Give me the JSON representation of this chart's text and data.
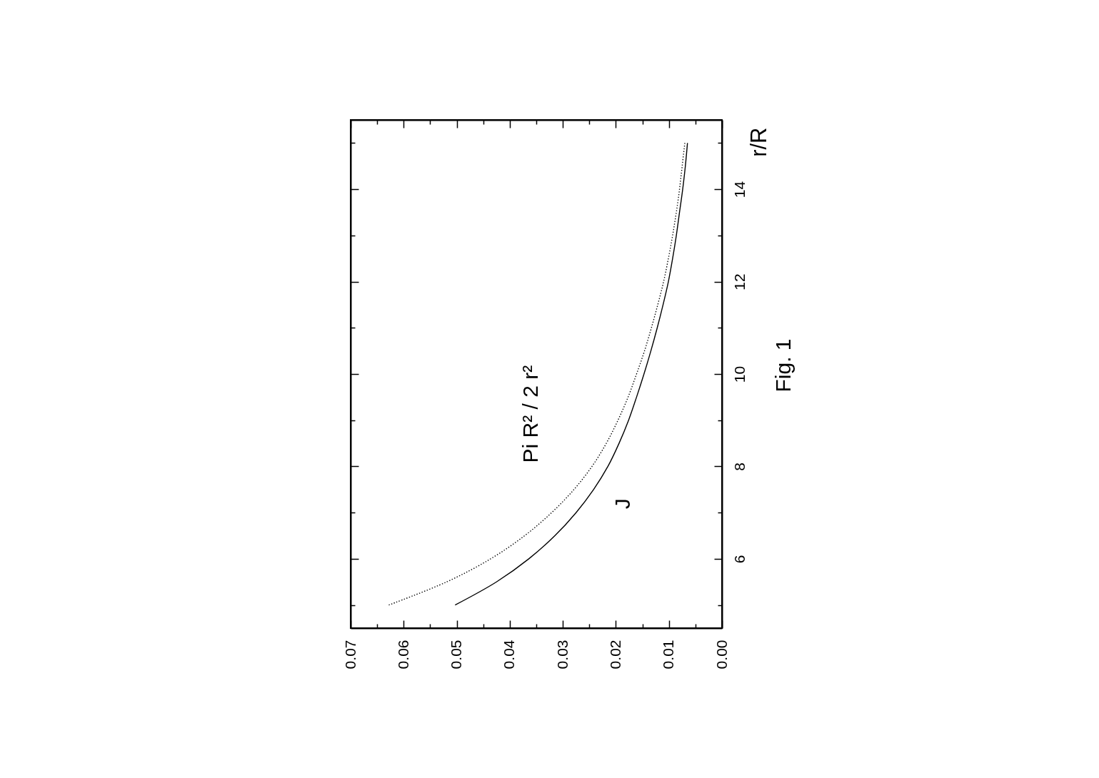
{
  "chart_data": {
    "type": "line",
    "series": [
      {
        "name": "J",
        "color": "#000000",
        "line_style": "solid",
        "x": [
          0.0503,
          0.0425,
          0.0364,
          0.0315,
          0.0275,
          0.0242,
          0.0215,
          0.0194,
          0.0176,
          0.0161,
          0.0147,
          0.0134,
          0.0122,
          0.0111,
          0.0101,
          0.0093,
          0.0086,
          0.008,
          0.0074,
          0.0069,
          0.0065
        ],
        "values": [
          5,
          5.5,
          6,
          6.5,
          7,
          7.5,
          8,
          8.5,
          9,
          9.5,
          10,
          10.5,
          11,
          11.5,
          12,
          12.5,
          13,
          13.5,
          14,
          14.5,
          15
        ]
      },
      {
        "name": "Pi R² / 2 r²",
        "color": "#000000",
        "line_style": "dotted",
        "x": [
          0.0628,
          0.0519,
          0.0436,
          0.0372,
          0.0321,
          0.0279,
          0.0245,
          0.0218,
          0.0196,
          0.0177,
          0.0161,
          0.0146,
          0.0133,
          0.0121,
          0.011,
          0.0101,
          0.0093,
          0.0086,
          0.008,
          0.0075,
          0.007
        ],
        "values": [
          5,
          5.5,
          6,
          6.5,
          7,
          7.5,
          8,
          8.5,
          9,
          9.5,
          10,
          10.5,
          11,
          11.5,
          12,
          12.5,
          13,
          13.5,
          14,
          14.5,
          15
        ]
      }
    ],
    "ylabel": "r/R",
    "xlim": [
      0.07,
      0
    ],
    "ylim": [
      4.5,
      15.5
    ],
    "xticks": [
      0.07,
      {
        "value": 0.065,
        "label": null
      },
      0.06,
      {
        "value": 0.055,
        "label": null
      },
      0.05,
      {
        "value": 0.045,
        "label": null
      },
      0.04,
      {
        "value": 0.035,
        "label": null
      },
      0.03,
      {
        "value": 0.025,
        "label": null
      },
      0.02,
      {
        "value": 0.015,
        "label": null
      },
      0.01,
      {
        "value": 0.005,
        "label": null
      },
      {
        "value": 0,
        "label": "0.00"
      }
    ],
    "yticks": [
      {
        "value": 5,
        "label": null
      },
      6,
      {
        "value": 7,
        "label": null
      },
      8,
      {
        "value": 9,
        "label": null
      },
      10,
      {
        "value": 11,
        "label": null
      },
      12,
      {
        "value": 13,
        "label": null
      },
      14,
      {
        "value": 15,
        "label": null
      }
    ],
    "annotations": [
      "Fig. 1"
    ]
  }
}
